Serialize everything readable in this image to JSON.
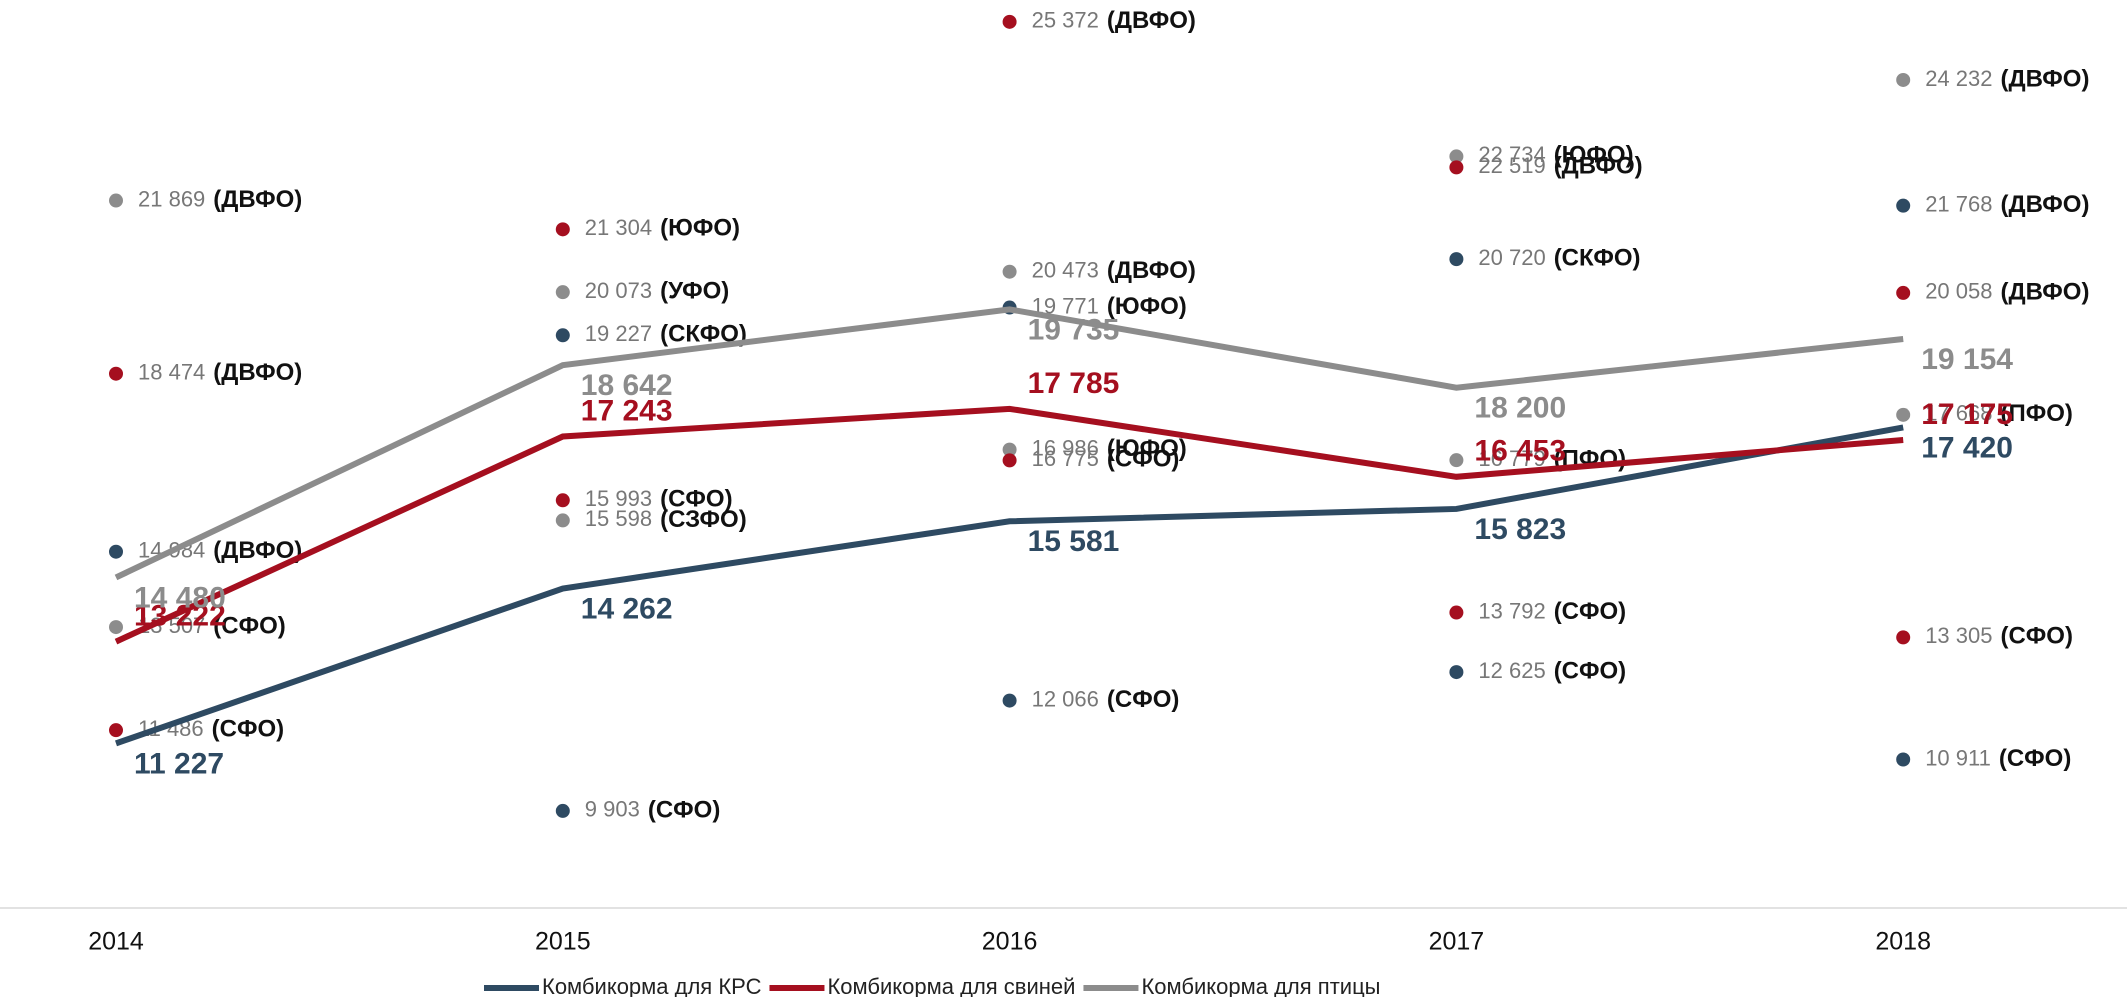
{
  "chart_data": {
    "type": "line",
    "categories": [
      "2014",
      "2015",
      "2016",
      "2017",
      "2018"
    ],
    "ylim": [
      8000,
      25800
    ],
    "series": [
      {
        "name": "Комбикорма для КРС",
        "color": "#2e4a62",
        "values": [
          11227,
          14262,
          15581,
          15823,
          17420
        ],
        "value_labels": [
          "11 227",
          "14 262",
          "15 581",
          "15 823",
          "17 420"
        ]
      },
      {
        "name": "Комбикорма для свиней",
        "color": "#a50f1f",
        "values": [
          13222,
          17243,
          17785,
          16453,
          17175
        ],
        "value_labels": [
          "13 222",
          "17 243",
          "17 785",
          "16 453",
          "17 175"
        ]
      },
      {
        "name": "Комбикорма для птицы",
        "color": "#8c8c8c",
        "values": [
          14480,
          18642,
          19735,
          18200,
          19154
        ],
        "value_labels": [
          "14 480",
          "18 642",
          "19 735",
          "18 200",
          "19 154"
        ]
      }
    ],
    "points": [
      {
        "category": 0,
        "series": 2,
        "value": 21869,
        "value_label": "21 869",
        "region": "(ДВФО)"
      },
      {
        "category": 0,
        "series": 1,
        "value": 18474,
        "value_label": "18 474",
        "region": "(ДВФО)"
      },
      {
        "category": 0,
        "series": 0,
        "value": 14984,
        "value_label": "14 984",
        "region": "(ДВФО)"
      },
      {
        "category": 0,
        "series": 2,
        "value": 13507,
        "value_label": "13 507",
        "region": "(СФО)"
      },
      {
        "category": 0,
        "series": 1,
        "value": 11486,
        "value_label": "11 486",
        "region": "(СФО)"
      },
      {
        "category": 1,
        "series": 1,
        "value": 21304,
        "value_label": "21 304",
        "region": "(ЮФО)"
      },
      {
        "category": 1,
        "series": 2,
        "value": 20073,
        "value_label": "20 073",
        "region": "(УФО)"
      },
      {
        "category": 1,
        "series": 0,
        "value": 19227,
        "value_label": "19 227",
        "region": "(СКФО)"
      },
      {
        "category": 1,
        "series": 1,
        "value": 15993,
        "value_label": "15 993",
        "region": "(СФО)"
      },
      {
        "category": 1,
        "series": 2,
        "value": 15598,
        "value_label": "15 598",
        "region": "(СЗФО)"
      },
      {
        "category": 1,
        "series": 0,
        "value": 9903,
        "value_label": "9 903",
        "region": "(СФО)"
      },
      {
        "category": 2,
        "series": 1,
        "value": 25372,
        "value_label": "25 372",
        "region": "(ДВФО)"
      },
      {
        "category": 2,
        "series": 2,
        "value": 20473,
        "value_label": "20 473",
        "region": "(ДВФО)"
      },
      {
        "category": 2,
        "series": 0,
        "value": 19771,
        "value_label": "19 771",
        "region": "(ЮФО)"
      },
      {
        "category": 2,
        "series": 2,
        "value": 16986,
        "value_label": "16 986",
        "region": "(ЮФО)"
      },
      {
        "category": 2,
        "series": 1,
        "value": 16775,
        "value_label": "16 775",
        "region": "(СФО)"
      },
      {
        "category": 2,
        "series": 0,
        "value": 12066,
        "value_label": "12 066",
        "region": "(СФО)"
      },
      {
        "category": 3,
        "series": 2,
        "value": 22734,
        "value_label": "22 734",
        "region": "(ЮФО)"
      },
      {
        "category": 3,
        "series": 1,
        "value": 22519,
        "value_label": "22 519",
        "region": "(ДВФО)"
      },
      {
        "category": 3,
        "series": 0,
        "value": 20720,
        "value_label": "20 720",
        "region": "(СКФО)"
      },
      {
        "category": 3,
        "series": 2,
        "value": 16779,
        "value_label": "16 779",
        "region": "(ПФО)"
      },
      {
        "category": 3,
        "series": 1,
        "value": 13792,
        "value_label": "13 792",
        "region": "(СФО)"
      },
      {
        "category": 3,
        "series": 0,
        "value": 12625,
        "value_label": "12 625",
        "region": "(СФО)"
      },
      {
        "category": 4,
        "series": 2,
        "value": 24232,
        "value_label": "24 232",
        "region": "(ДВФО)"
      },
      {
        "category": 4,
        "series": 0,
        "value": 21768,
        "value_label": "21 768",
        "region": "(ДВФО)"
      },
      {
        "category": 4,
        "series": 1,
        "value": 20058,
        "value_label": "20 058",
        "region": "(ДВФО)"
      },
      {
        "category": 4,
        "series": 2,
        "value": 17668,
        "value_label": "17 668",
        "region": "(ПФО)"
      },
      {
        "category": 4,
        "series": 1,
        "value": 13305,
        "value_label": "13 305",
        "region": "(СФО)"
      },
      {
        "category": 4,
        "series": 0,
        "value": 10911,
        "value_label": "10 911",
        "region": "(СФО)"
      }
    ]
  }
}
